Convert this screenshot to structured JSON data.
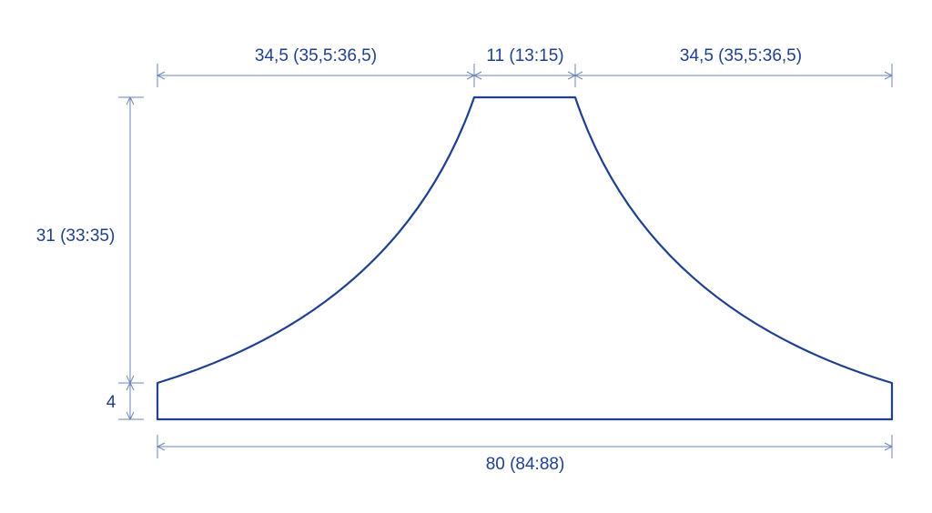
{
  "colors": {
    "shape_stroke": "#1f3f8f",
    "dimension_line": "#6a86b8",
    "label_text": "#1f3f8f",
    "background": "#ffffff"
  },
  "dimensions": {
    "top_left_width": "34,5 (35,5:36,5)",
    "top_center_width": "11 (13:15)",
    "top_right_width": "34,5 (35,5:36,5)",
    "side_height": "31 (33:35)",
    "edge_height": "4",
    "bottom_width": "80 (84:88)"
  }
}
